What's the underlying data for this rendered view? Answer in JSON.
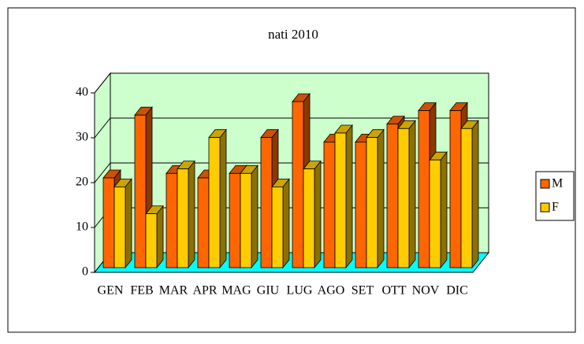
{
  "chart_data": {
    "type": "bar3d",
    "title": "nati 2010",
    "categories": [
      "GEN",
      "FEB",
      "MAR",
      "APR",
      "MAG",
      "GIU",
      "LUG",
      "AGO",
      "SET",
      "OTT",
      "NOV",
      "DIC"
    ],
    "series": [
      {
        "name": "M",
        "color": "#ff6600",
        "values": [
          20,
          34,
          21,
          20,
          21,
          29,
          37,
          28,
          28,
          32,
          35,
          35
        ]
      },
      {
        "name": "F",
        "color": "#ffcc00",
        "values": [
          18,
          12,
          22,
          29,
          21,
          18,
          22,
          30,
          29,
          31,
          24,
          31
        ]
      }
    ],
    "ylim": [
      0,
      40
    ],
    "yticks": [
      0,
      10,
      20,
      30,
      40
    ],
    "grid": true,
    "legend": "right",
    "wall_color": "#ccffcc",
    "floor_color": "#00ffff"
  }
}
